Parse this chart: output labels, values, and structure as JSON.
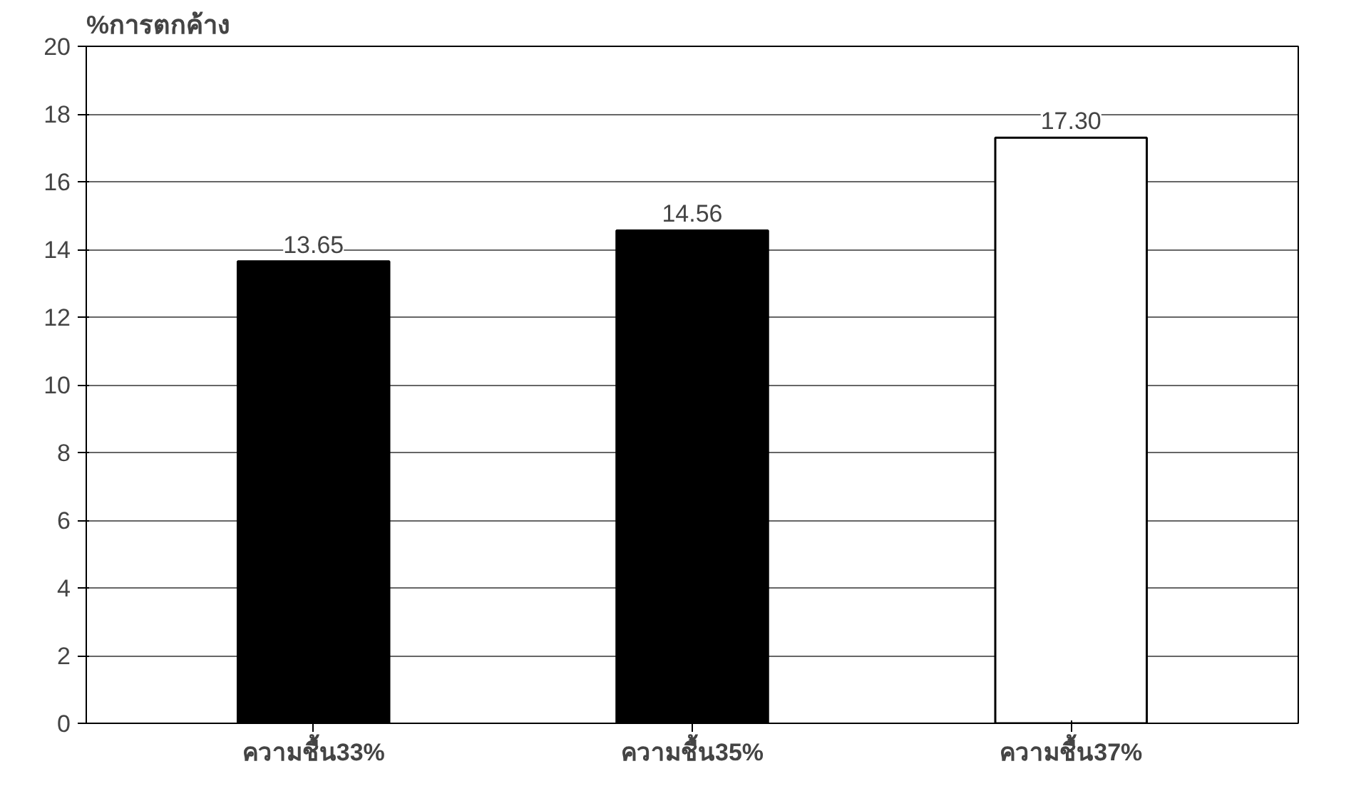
{
  "chart_data": {
    "type": "bar",
    "ylabel": "%การตกค้าง",
    "categories": [
      "ความชื้น33%",
      "ความชื้น35%",
      "ความชื้น37%"
    ],
    "values": [
      13.65,
      14.56,
      17.3
    ],
    "colors": [
      "#000000",
      "#000000",
      "#ffffff"
    ],
    "value_labels": [
      "13.65",
      "14.56",
      "17.30"
    ],
    "ylim": [
      0,
      20
    ],
    "yticks": [
      0,
      2,
      4,
      6,
      8,
      10,
      12,
      14,
      16,
      18,
      20
    ],
    "grid": "y"
  }
}
